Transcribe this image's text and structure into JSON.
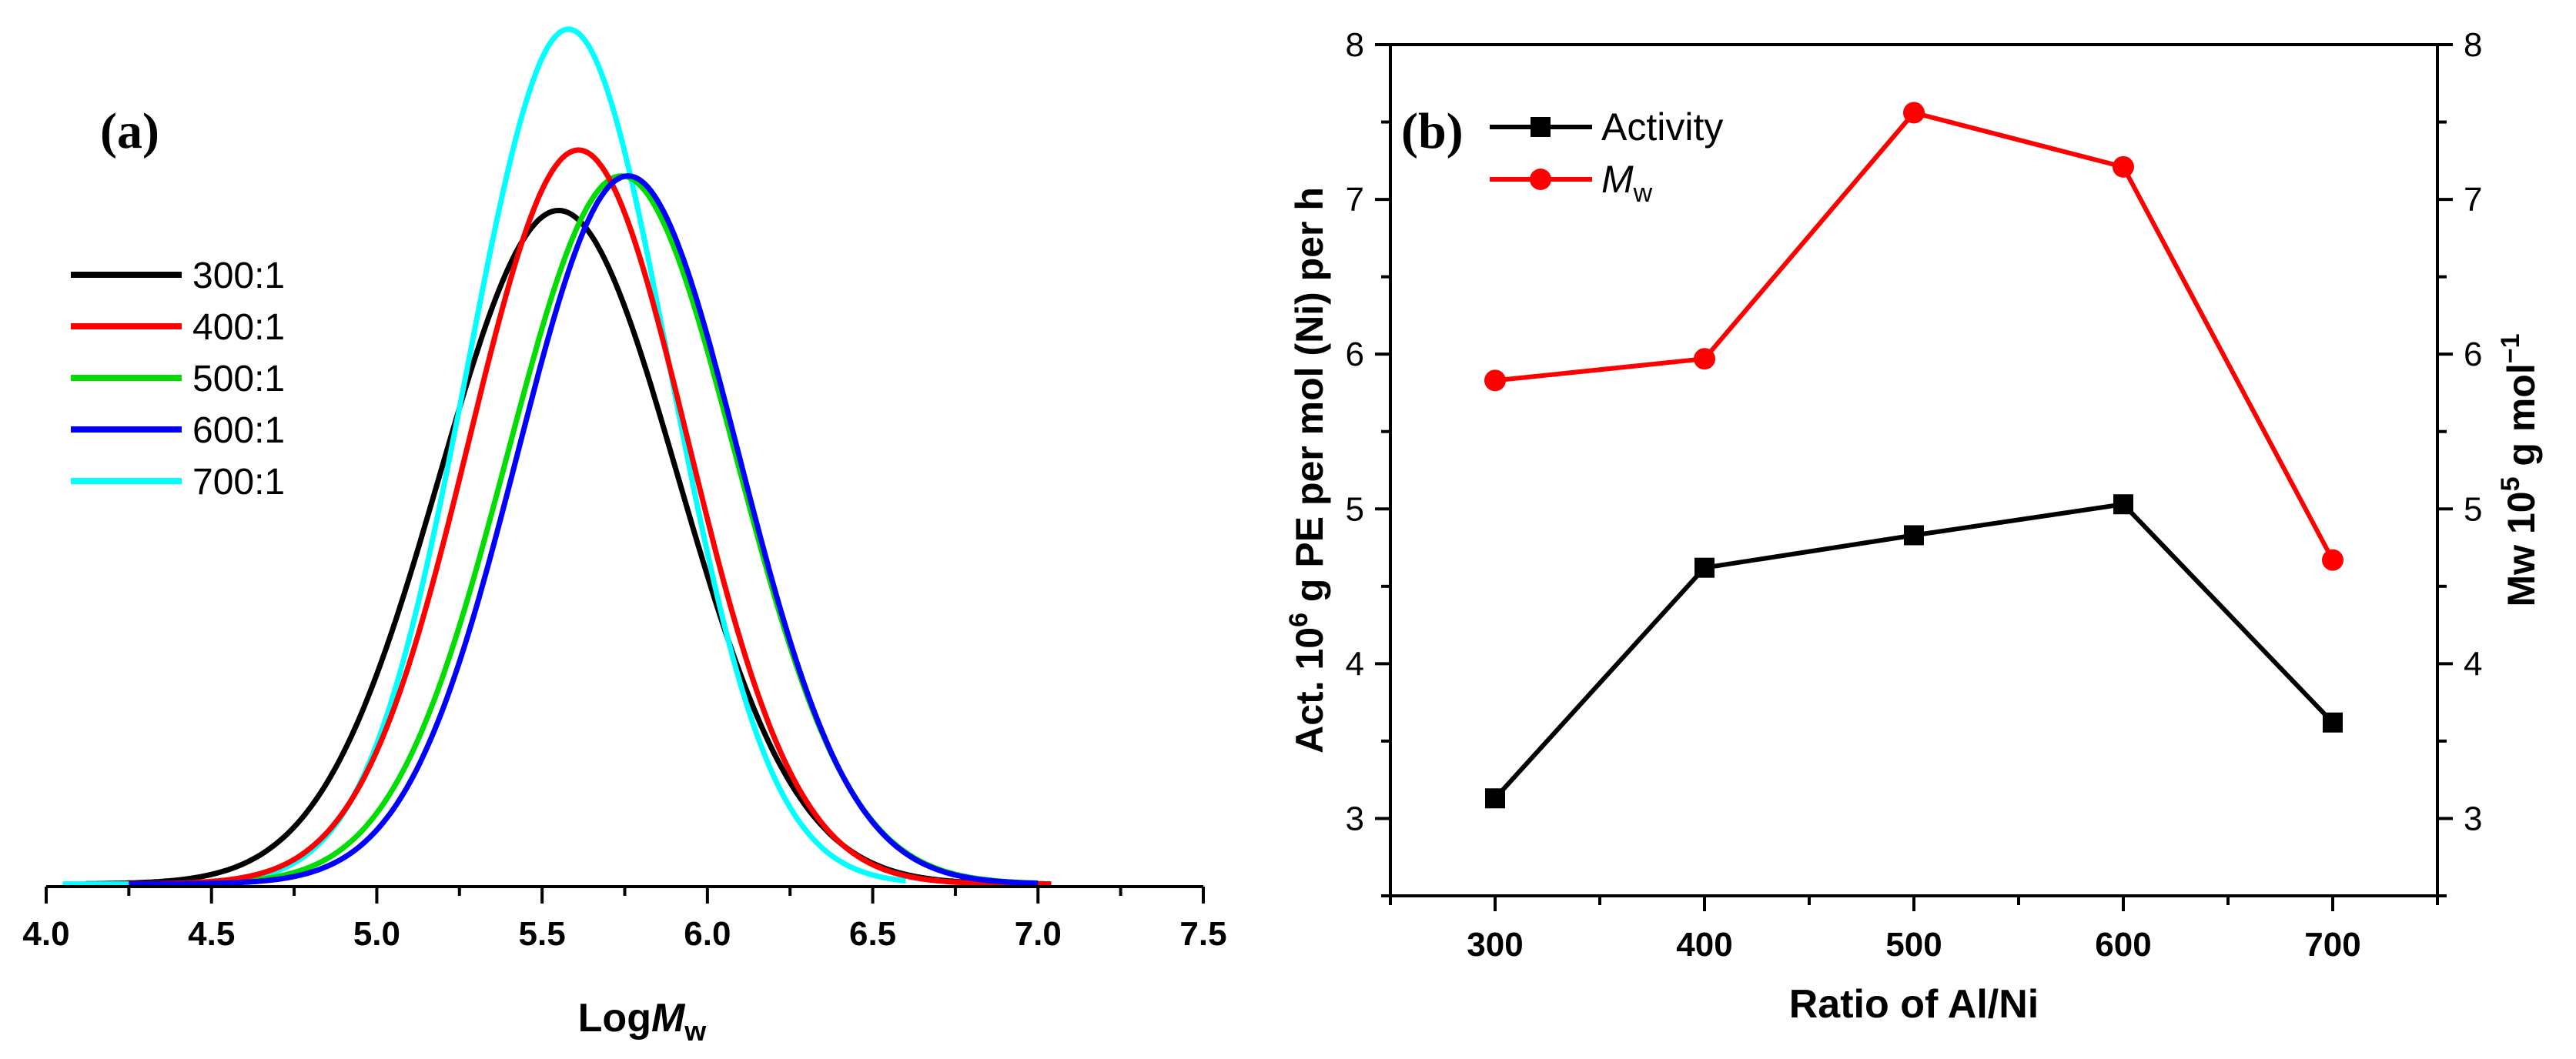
{
  "chart_data": [
    {
      "type": "line",
      "panel_label": "(a)",
      "xlabel_main": "Log",
      "xlabel_italic": "M",
      "xlabel_sub": "w",
      "ylabel": "",
      "xlim": [
        4.0,
        7.5
      ],
      "xticks": [
        "4.0",
        "4.5",
        "5.0",
        "5.5",
        "6.0",
        "6.5",
        "7.0",
        "7.5"
      ],
      "y_axis_shown": false,
      "legend_position": "upper-left",
      "series": [
        {
          "name": "300:1",
          "color": "#000000",
          "peak_x": 5.55,
          "peak_height": 0.78,
          "sigma": 0.36,
          "x_range": [
            4.12,
            7.02
          ]
        },
        {
          "name": "400:1",
          "color": "#ff0000",
          "peak_x": 5.61,
          "peak_height": 0.85,
          "sigma": 0.33,
          "x_range": [
            4.25,
            7.04
          ]
        },
        {
          "name": "500:1",
          "color": "#00dd00",
          "peak_x": 5.74,
          "peak_height": 0.82,
          "sigma": 0.345,
          "x_range": [
            4.25,
            7.0
          ]
        },
        {
          "name": "600:1",
          "color": "#0000ff",
          "peak_x": 5.76,
          "peak_height": 0.82,
          "sigma": 0.335,
          "x_range": [
            4.25,
            7.0
          ]
        },
        {
          "name": "700:1",
          "color": "#00ffff",
          "peak_x": 5.58,
          "peak_height": 0.99,
          "sigma": 0.305,
          "x_range": [
            4.05,
            6.6
          ]
        }
      ]
    },
    {
      "type": "line",
      "panel_label": "(b)",
      "xlabel": "Ratio of Al/Ni",
      "ylabel_left_parts": [
        "Act. 10",
        "6",
        " g PE per mol (Ni) per h"
      ],
      "ylabel_right_parts": [
        "Mw 10",
        "5",
        " g mol",
        "−1"
      ],
      "x": [
        300,
        400,
        500,
        600,
        700
      ],
      "xlim": [
        250,
        750
      ],
      "xticks": [
        "300",
        "400",
        "500",
        "600",
        "700"
      ],
      "ylim_left": [
        2.5,
        8
      ],
      "ylim_right": [
        2.5,
        8
      ],
      "yticks_left": [
        "3",
        "4",
        "5",
        "6",
        "7",
        "8"
      ],
      "yticks_right": [
        "3",
        "4",
        "5",
        "6",
        "7",
        "8"
      ],
      "legend_position": "upper-left",
      "series": [
        {
          "name": "Activity",
          "axis": "left",
          "color": "#000000",
          "marker": "square",
          "values": [
            3.13,
            4.62,
            4.83,
            5.03,
            3.62
          ]
        },
        {
          "name_italic": "M",
          "name_sub": "w",
          "axis": "right",
          "color": "#ff0000",
          "marker": "circle",
          "values": [
            5.83,
            5.97,
            7.56,
            7.21,
            4.67
          ]
        }
      ]
    }
  ]
}
